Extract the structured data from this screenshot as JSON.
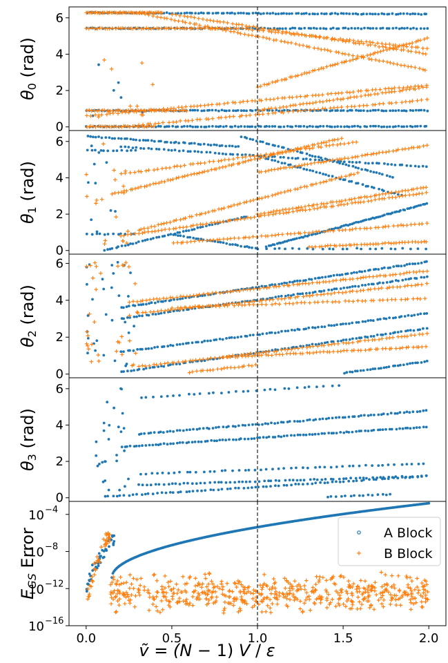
{
  "figure": {
    "xlabel_parts": [
      "ṽ = (",
      "N",
      " − 1) ",
      "V",
      " / ",
      "ε"
    ],
    "reference_line": {
      "x": 1.0,
      "style": "dashed",
      "color": "#333333"
    },
    "colors": {
      "a_block": "#1f77b4",
      "b_block": "#ff7f0e"
    }
  },
  "chart_data": [
    {
      "type": "scatter",
      "id": "theta0",
      "ylabel": {
        "symbol": "θ",
        "sub": "0",
        "unit": " (rad)"
      },
      "xlim": [
        -0.1,
        2.1
      ],
      "ylim": [
        -0.2,
        6.6
      ],
      "yticks": [
        0,
        2,
        4,
        6
      ],
      "yticklabels": [
        "0",
        "2",
        "4",
        "6"
      ],
      "grid": false,
      "series": [
        {
          "key": "A",
          "marker": "dot",
          "color": "#1f77b4",
          "bands": [
            {
              "x0": 0.0,
              "x1": 2.0,
              "y0": 6.28,
              "y1": 6.2,
              "n": 120
            },
            {
              "x0": 0.0,
              "x1": 2.0,
              "y0": 5.42,
              "y1": 5.42,
              "n": 110
            },
            {
              "x0": 0.0,
              "x1": 2.0,
              "y0": 0.9,
              "y1": 0.9,
              "n": 120
            },
            {
              "x0": 0.0,
              "x1": 2.0,
              "y0": 0.02,
              "y1": 0.02,
              "n": 120
            }
          ],
          "scatter": [
            {
              "x0": 0.0,
              "x1": 0.35,
              "y0": 0.5,
              "y1": 3.5,
              "n": 6
            }
          ]
        },
        {
          "key": "B",
          "marker": "plus",
          "color": "#ff7f0e",
          "bands": [
            {
              "x0": 0.0,
              "x1": 0.45,
              "y0": 6.28,
              "y1": 6.28,
              "n": 50
            },
            {
              "x0": 0.0,
              "x1": 0.9,
              "y0": 5.42,
              "y1": 5.42,
              "n": 60
            },
            {
              "x0": 0.0,
              "x1": 0.6,
              "y0": 0.9,
              "y1": 0.9,
              "n": 40
            },
            {
              "x0": 0.0,
              "x1": 0.4,
              "y0": 0.02,
              "y1": 0.02,
              "n": 30
            },
            {
              "x0": 0.3,
              "x1": 2.0,
              "y0": 6.28,
              "y1": 3.1,
              "n": 80
            },
            {
              "x0": 0.5,
              "x1": 2.0,
              "y0": 6.2,
              "y1": 4.0,
              "n": 70
            },
            {
              "x0": 0.9,
              "x1": 2.0,
              "y0": 5.42,
              "y1": 4.3,
              "n": 50
            },
            {
              "x0": 0.0,
              "x1": 2.0,
              "y0": 0.6,
              "y1": 2.3,
              "n": 90
            },
            {
              "x0": 0.3,
              "x1": 2.0,
              "y0": 0.1,
              "y1": 1.5,
              "n": 70
            },
            {
              "x0": 1.0,
              "x1": 2.0,
              "y0": 0.9,
              "y1": 2.2,
              "n": 50
            },
            {
              "x0": 1.0,
              "x1": 2.0,
              "y0": 2.2,
              "y1": 4.9,
              "n": 60
            }
          ],
          "scatter": [
            {
              "x0": 0.05,
              "x1": 0.4,
              "y0": 0.5,
              "y1": 4.5,
              "n": 12
            }
          ]
        }
      ]
    },
    {
      "type": "scatter",
      "id": "theta1",
      "ylabel": {
        "symbol": "θ",
        "sub": "1",
        "unit": " (rad)"
      },
      "xlim": [
        -0.1,
        2.1
      ],
      "ylim": [
        -0.2,
        6.6
      ],
      "yticks": [
        0,
        2,
        4,
        6
      ],
      "yticklabels": [
        "0",
        "2",
        "4",
        "6"
      ],
      "grid": false,
      "series": [
        {
          "key": "A",
          "marker": "dot",
          "color": "#1f77b4",
          "bands": [
            {
              "x0": 0.0,
              "x1": 0.9,
              "y0": 6.28,
              "y1": 5.7,
              "n": 50
            },
            {
              "x0": 0.2,
              "x1": 2.0,
              "y0": 5.7,
              "y1": 4.6,
              "n": 80
            },
            {
              "x0": 0.9,
              "x1": 1.8,
              "y0": 6.28,
              "y1": 4.0,
              "n": 50
            },
            {
              "x0": 1.0,
              "x1": 1.85,
              "y0": 5.2,
              "y1": 3.0,
              "n": 45
            },
            {
              "x0": 0.1,
              "x1": 0.95,
              "y0": 0.0,
              "y1": 1.9,
              "n": 50
            },
            {
              "x0": 0.5,
              "x1": 1.0,
              "y0": 0.9,
              "y1": 0.1,
              "n": 30
            },
            {
              "x0": 1.05,
              "x1": 2.0,
              "y0": 0.2,
              "y1": 2.6,
              "n": 80
            },
            {
              "x0": 1.0,
              "x1": 2.0,
              "y0": 0.1,
              "y1": 0.1,
              "n": 25
            },
            {
              "x0": 0.0,
              "x1": 0.3,
              "y0": 5.5,
              "y1": 5.5,
              "n": 12
            },
            {
              "x0": 0.0,
              "x1": 0.3,
              "y0": 0.9,
              "y1": 0.9,
              "n": 12
            }
          ],
          "scatter": [
            {
              "x0": 0.0,
              "x1": 0.2,
              "y0": 0.2,
              "y1": 6.0,
              "n": 10
            }
          ]
        },
        {
          "key": "B",
          "marker": "plus",
          "color": "#ff7f0e",
          "bands": [
            {
              "x0": 0.15,
              "x1": 1.5,
              "y0": 3.1,
              "y1": 6.2,
              "n": 80
            },
            {
              "x0": 0.2,
              "x1": 1.6,
              "y0": 4.2,
              "y1": 6.0,
              "n": 60
            },
            {
              "x0": 1.0,
              "x1": 2.0,
              "y0": 4.3,
              "y1": 5.8,
              "n": 55
            },
            {
              "x0": 0.3,
              "x1": 1.6,
              "y0": 1.1,
              "y1": 4.3,
              "n": 70
            },
            {
              "x0": 1.0,
              "x1": 2.0,
              "y0": 2.0,
              "y1": 3.5,
              "n": 55
            },
            {
              "x0": 0.2,
              "x1": 2.0,
              "y0": 0.8,
              "y1": 3.2,
              "n": 90
            },
            {
              "x0": 0.5,
              "x1": 2.0,
              "y0": 0.4,
              "y1": 1.5,
              "n": 70
            },
            {
              "x0": 1.3,
              "x1": 2.0,
              "y0": 0.2,
              "y1": 0.5,
              "n": 40
            }
          ],
          "scatter": [
            {
              "x0": 0.0,
              "x1": 0.25,
              "y0": 0.1,
              "y1": 6.0,
              "n": 18
            }
          ]
        }
      ]
    },
    {
      "type": "scatter",
      "id": "theta2",
      "ylabel": {
        "symbol": "θ",
        "sub": "2",
        "unit": " (rad)"
      },
      "xlim": [
        -0.1,
        2.1
      ],
      "ylim": [
        -0.2,
        6.5
      ],
      "yticks": [
        0,
        2,
        4,
        6
      ],
      "yticklabels": [
        "0",
        "2",
        "4",
        "6"
      ],
      "grid": false,
      "series": [
        {
          "key": "A",
          "marker": "dot",
          "color": "#1f77b4",
          "bands": [
            {
              "x0": 0.2,
              "x1": 2.0,
              "y0": 3.6,
              "y1": 6.1,
              "n": 110
            },
            {
              "x0": 0.2,
              "x1": 2.0,
              "y0": 3.0,
              "y1": 5.3,
              "n": 100
            },
            {
              "x0": 0.2,
              "x1": 2.0,
              "y0": 1.2,
              "y1": 3.3,
              "n": 100
            },
            {
              "x0": 0.2,
              "x1": 2.0,
              "y0": 0.1,
              "y1": 2.5,
              "n": 100
            },
            {
              "x0": 1.5,
              "x1": 2.0,
              "y0": 0.05,
              "y1": 0.7,
              "n": 30
            }
          ],
          "scatter": [
            {
              "x0": 0.0,
              "x1": 0.3,
              "y0": 0.3,
              "y1": 6.1,
              "n": 30
            }
          ]
        },
        {
          "key": "B",
          "marker": "plus",
          "color": "#ff7f0e",
          "bands": [
            {
              "x0": 0.25,
              "x1": 2.0,
              "y0": 3.9,
              "y1": 5.6,
              "n": 90
            },
            {
              "x0": 0.3,
              "x1": 2.0,
              "y0": 3.3,
              "y1": 4.9,
              "n": 80
            },
            {
              "x0": 0.5,
              "x1": 2.0,
              "y0": 3.6,
              "y1": 4.1,
              "n": 60
            },
            {
              "x0": 0.3,
              "x1": 2.0,
              "y0": 0.4,
              "y1": 2.2,
              "n": 80
            },
            {
              "x0": 0.8,
              "x1": 2.0,
              "y0": 0.9,
              "y1": 1.5,
              "n": 60
            },
            {
              "x0": 0.6,
              "x1": 1.0,
              "y0": 0.1,
              "y1": 0.5,
              "n": 20
            }
          ],
          "scatter": [
            {
              "x0": 0.0,
              "x1": 0.3,
              "y0": 0.3,
              "y1": 6.2,
              "n": 35
            }
          ]
        }
      ]
    },
    {
      "type": "scatter",
      "id": "theta3",
      "ylabel": {
        "symbol": "θ",
        "sub": "3",
        "unit": " (rad)"
      },
      "xlim": [
        -0.1,
        2.1
      ],
      "ylim": [
        -0.2,
        6.6
      ],
      "yticks": [
        0,
        2,
        4,
        6
      ],
      "yticklabels": [
        "0",
        "2",
        "4",
        "6"
      ],
      "grid": false,
      "series": [
        {
          "key": "A",
          "marker": "dot",
          "color": "#1f77b4",
          "bands": [
            {
              "x0": 0.3,
              "x1": 1.5,
              "y0": 5.5,
              "y1": 6.2,
              "n": 30
            },
            {
              "x0": 0.3,
              "x1": 2.0,
              "y0": 3.5,
              "y1": 4.8,
              "n": 90
            },
            {
              "x0": 0.2,
              "x1": 2.0,
              "y0": 2.8,
              "y1": 3.9,
              "n": 100
            },
            {
              "x0": 0.3,
              "x1": 2.0,
              "y0": 1.3,
              "y1": 1.9,
              "n": 50
            },
            {
              "x0": 0.3,
              "x1": 2.0,
              "y0": 0.7,
              "y1": 1.2,
              "n": 70
            },
            {
              "x0": 0.1,
              "x1": 2.0,
              "y0": 0.05,
              "y1": 1.2,
              "n": 80
            },
            {
              "x0": 1.4,
              "x1": 1.8,
              "y0": 0.05,
              "y1": 0.2,
              "n": 15
            }
          ],
          "scatter": [
            {
              "x0": 0.0,
              "x1": 0.25,
              "y0": 0.1,
              "y1": 6.2,
              "n": 28
            }
          ]
        },
        {
          "key": "B",
          "marker": "plus",
          "color": "#ff7f0e",
          "bands": [],
          "scatter": []
        }
      ]
    },
    {
      "type": "scatter",
      "id": "egs_error",
      "ylabel": {
        "symbol": "E",
        "sub": "GS",
        "unit": " Error"
      },
      "yscale": "log",
      "xlim": [
        -0.1,
        2.1
      ],
      "ylim_exp": [
        -16,
        -2.6
      ],
      "yticks_exp": [
        -16,
        -12,
        -8,
        -4
      ],
      "yticklabels": [
        "10",
        "10",
        "10",
        "10"
      ],
      "ytick_exponents": [
        "−16",
        "−12",
        "−8",
        "−4"
      ],
      "xticks": [
        0.0,
        0.5,
        1.0,
        1.5,
        2.0
      ],
      "xticklabels": [
        "0.0",
        "0.5",
        "1.0",
        "1.5",
        "2.0"
      ],
      "grid": false,
      "legend": {
        "loc": "upper-right",
        "labels": [
          "A Block",
          "B Block"
        ]
      },
      "series": [
        {
          "key": "A",
          "marker": "dot",
          "color": "#1f77b4",
          "curve": {
            "from": 0.15,
            "to": 2.0,
            "n": 320,
            "exp_at_start": -10.8,
            "exp_at_end": -2.8,
            "power": 0.5
          },
          "rise": {
            "from": 0.0,
            "to": 0.17,
            "n": 45,
            "exp_lo": -13.5,
            "exp_hi": -6.3
          }
        },
        {
          "key": "B",
          "marker": "plus",
          "color": "#ff7f0e",
          "rise": {
            "from": 0.0,
            "to": 0.14,
            "n": 40,
            "exp_lo": -15.5,
            "exp_hi": -6.0
          },
          "noise": {
            "from": 0.14,
            "to": 2.0,
            "n": 560,
            "exp_lo": -14.8,
            "exp_hi": -10.2
          }
        }
      ]
    }
  ]
}
